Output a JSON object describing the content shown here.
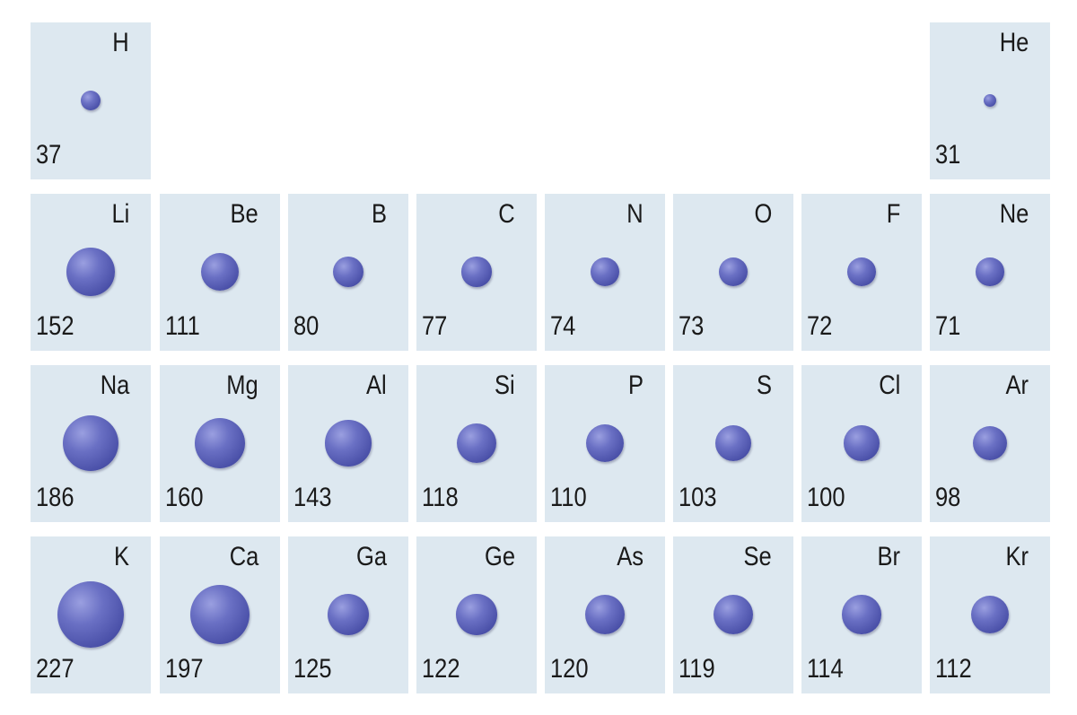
{
  "title": "",
  "colors": {
    "cell_background": "#dde8f0",
    "atom": "#5a5fb0",
    "text": "#1a1a1a"
  },
  "elements": [
    {
      "symbol": "H",
      "radius": 37,
      "period": 1,
      "group": 1
    },
    {
      "symbol": "He",
      "radius": 31,
      "period": 1,
      "group": 18
    },
    {
      "symbol": "Li",
      "radius": 152,
      "period": 2,
      "group": 1
    },
    {
      "symbol": "Be",
      "radius": 111,
      "period": 2,
      "group": 2
    },
    {
      "symbol": "B",
      "radius": 80,
      "period": 2,
      "group": 13
    },
    {
      "symbol": "C",
      "radius": 77,
      "period": 2,
      "group": 14
    },
    {
      "symbol": "N",
      "radius": 74,
      "period": 2,
      "group": 15
    },
    {
      "symbol": "O",
      "radius": 73,
      "period": 2,
      "group": 16
    },
    {
      "symbol": "F",
      "radius": 72,
      "period": 2,
      "group": 17
    },
    {
      "symbol": "Ne",
      "radius": 71,
      "period": 2,
      "group": 18
    },
    {
      "symbol": "Na",
      "radius": 186,
      "period": 3,
      "group": 1
    },
    {
      "symbol": "Mg",
      "radius": 160,
      "period": 3,
      "group": 2
    },
    {
      "symbol": "Al",
      "radius": 143,
      "period": 3,
      "group": 13
    },
    {
      "symbol": "Si",
      "radius": 118,
      "period": 3,
      "group": 14
    },
    {
      "symbol": "P",
      "radius": 110,
      "period": 3,
      "group": 15
    },
    {
      "symbol": "S",
      "radius": 103,
      "period": 3,
      "group": 16
    },
    {
      "symbol": "Cl",
      "radius": 100,
      "period": 3,
      "group": 17
    },
    {
      "symbol": "Ar",
      "radius": 98,
      "period": 3,
      "group": 18
    },
    {
      "symbol": "K",
      "radius": 227,
      "period": 4,
      "group": 1
    },
    {
      "symbol": "Ca",
      "radius": 197,
      "period": 4,
      "group": 2
    },
    {
      "symbol": "Ga",
      "radius": 125,
      "period": 4,
      "group": 13
    },
    {
      "symbol": "Ge",
      "radius": 122,
      "period": 4,
      "group": 14
    },
    {
      "symbol": "As",
      "radius": 120,
      "period": 4,
      "group": 15
    },
    {
      "symbol": "Se",
      "radius": 119,
      "period": 4,
      "group": 16
    },
    {
      "symbol": "Br",
      "radius": 114,
      "period": 4,
      "group": 17
    },
    {
      "symbol": "Kr",
      "radius": 112,
      "period": 4,
      "group": 18
    }
  ]
}
